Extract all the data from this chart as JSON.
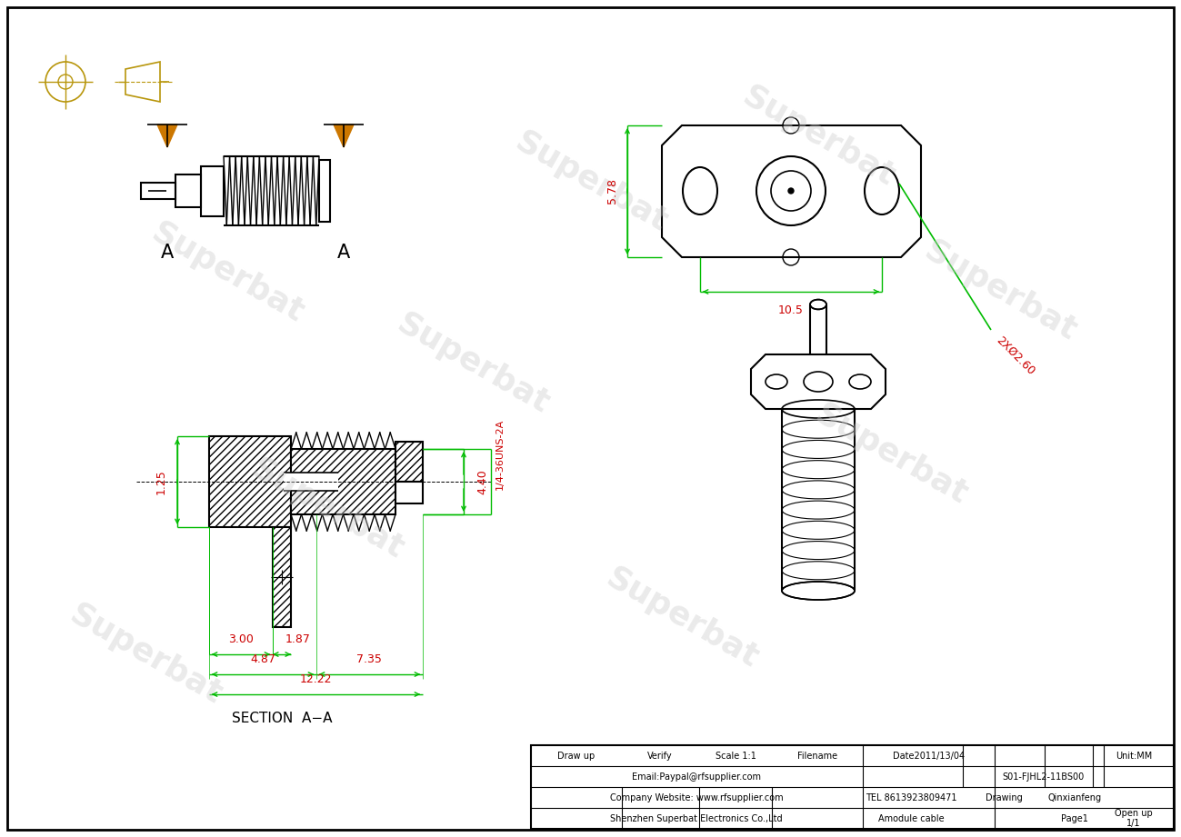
{
  "bg_color": "#ffffff",
  "line_color": "#000000",
  "green_color": "#00bb00",
  "red_color": "#cc0000",
  "orange_color": "#cc7700",
  "tan_color": "#b8960c",
  "watermark_text": "Superbat",
  "fig_width": 12.99,
  "fig_height": 9.21,
  "section_label": "SECTION  A−A",
  "table": {
    "r1": [
      "Draw up",
      "Verify",
      "Scale 1:1",
      "Filename",
      "Date2011/13/04",
      "Unit:MM"
    ],
    "r2": [
      "Email:Paypal@rfsupplier.com",
      "S01-FJHL2-11BS00"
    ],
    "r3": [
      "Company Website: www.rfsupplier.com",
      "TEL 8613923809471",
      "Drawing",
      "Qinxianfeng"
    ],
    "r4": [
      "Shenzhen Superbat Electronics Co.,Ltd",
      "Amodule cable",
      "Page1",
      "Open up\n1/1"
    ]
  }
}
